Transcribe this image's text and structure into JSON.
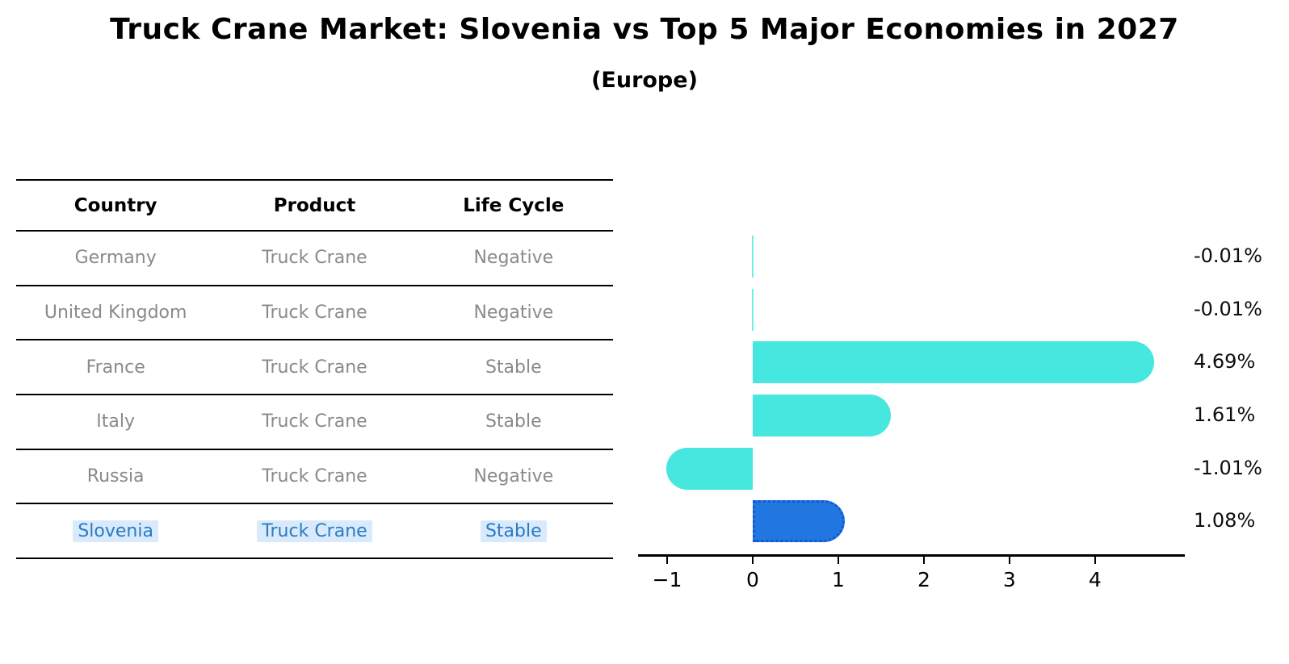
{
  "title": "Truck Crane Market: Slovenia vs Top 5 Major Economies in 2027",
  "subtitle": "(Europe)",
  "table": {
    "headers": [
      "Country",
      "Product",
      "Life Cycle"
    ],
    "rows": [
      [
        "Germany",
        "Truck Crane",
        "Negative"
      ],
      [
        "United Kingdom",
        "Truck Crane",
        "Negative"
      ],
      [
        "France",
        "Truck Crane",
        "Stable"
      ],
      [
        "Italy",
        "Truck Crane",
        "Stable"
      ],
      [
        "Russia",
        "Truck Crane",
        "Negative"
      ],
      [
        "Slovenia",
        "Truck Crane",
        "Stable"
      ]
    ],
    "highlight_row_text_color": "#2b7bc0",
    "highlight_row_bg_color": "#d8eafc"
  },
  "chart_data": {
    "type": "bar",
    "orientation": "horizontal",
    "title": "Truck Crane Market: Slovenia vs Top 5 Major Economies in 2027 (Europe)",
    "categories": [
      "Germany",
      "United Kingdom",
      "France",
      "Italy",
      "Russia",
      "Slovenia"
    ],
    "values": [
      -0.01,
      -0.01,
      4.69,
      1.61,
      -1.01,
      1.08
    ],
    "value_labels": [
      "-0.01%",
      "-0.01%",
      "4.69%",
      "1.61%",
      "-1.01%",
      "1.08%"
    ],
    "xlabel": "",
    "ylabel": "",
    "xticks": [
      -1,
      0,
      1,
      2,
      3,
      4
    ],
    "xlim": [
      -1.34,
      5.03
    ],
    "grid": false,
    "legend": false,
    "bar_color": "#46e7de",
    "highlight_index": 5,
    "highlight_bar_color": "#2176e0",
    "highlight_border_color": "#1158d4"
  }
}
